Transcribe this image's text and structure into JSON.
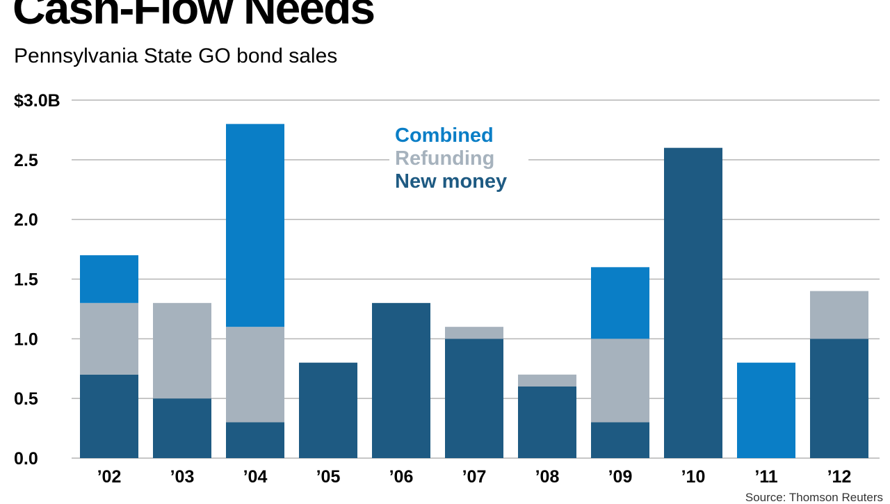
{
  "header": {
    "title": "Cash-Flow Needs",
    "subtitle": "Pennsylvania State GO bond sales"
  },
  "source": "Source: Thomson Reuters",
  "colors": {
    "new_money": "#1e5a82",
    "refunding": "#a6b2bd",
    "combined": "#0a7ec6",
    "gridline": "#b4b4b4"
  },
  "chart_data": {
    "type": "bar",
    "stacked": true,
    "title": "Cash-Flow Needs",
    "subtitle": "Pennsylvania State GO bond sales",
    "xlabel": "",
    "ylabel": "",
    "categories": [
      "’02",
      "’03",
      "’04",
      "’05",
      "’06",
      "’07",
      "’08",
      "’09",
      "’10",
      "’11",
      "’12"
    ],
    "series": [
      {
        "name": "New money",
        "color": "#1e5a82",
        "values": [
          0.7,
          0.5,
          0.3,
          0.8,
          1.3,
          1.0,
          0.6,
          0.3,
          2.6,
          0,
          1.0
        ]
      },
      {
        "name": "Refunding",
        "color": "#a6b2bd",
        "values": [
          0.6,
          0.8,
          0.8,
          0,
          0,
          0.1,
          0.1,
          0.7,
          0,
          0,
          0.4
        ]
      },
      {
        "name": "Combined",
        "color": "#0a7ec6",
        "values": [
          0.4,
          0,
          1.7,
          0,
          0,
          0,
          0,
          0.6,
          0,
          0.8,
          0
        ]
      }
    ],
    "ylim": [
      0,
      3.0
    ],
    "yticks": [
      0,
      0.5,
      1.0,
      1.5,
      2.0,
      2.5,
      3.0
    ],
    "ytick_labels": [
      "0.0",
      "0.5",
      "1.0",
      "1.5",
      "2.0",
      "2.5",
      "$3.0B"
    ],
    "legend": {
      "placement": "top-center",
      "entries": [
        "Combined",
        "Refunding",
        "New money"
      ]
    },
    "grid": true
  }
}
